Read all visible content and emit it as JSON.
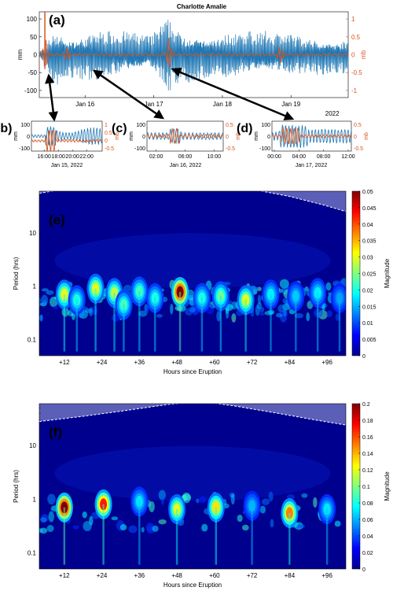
{
  "colors": {
    "tide_gauge": "#1f77b4",
    "pressure": "#d95319",
    "cone_of_influence": "#5b5fb8",
    "background": "#ffffff"
  },
  "chart_data": [
    {
      "id": "a",
      "panel_label": "(a)",
      "type": "line",
      "title": "Charlotte Amalie",
      "ylabel_left": "mm",
      "ylabel_right": "mb",
      "ylim_left": [
        -120,
        120
      ],
      "yticks_left": [
        "100",
        "50",
        "0",
        "-50",
        "-100"
      ],
      "ylim_right": [
        -1.2,
        1.2
      ],
      "yticks_right": [
        "1",
        "0.5",
        "0",
        "-0.5",
        "-1"
      ],
      "xticks": [
        "Jan 16",
        "Jan 17",
        "Jan 18",
        "Jan 19"
      ],
      "year_label": "2022",
      "series": [
        {
          "role": "tide_gauge",
          "axis": "left",
          "amplitude_envelope_mm": [
            [
              0,
              8
            ],
            [
              0.02,
              25
            ],
            [
              0.05,
              80
            ],
            [
              0.09,
              55
            ],
            [
              0.2,
              65
            ],
            [
              0.36,
              45
            ],
            [
              0.42,
              100
            ],
            [
              0.45,
              70
            ],
            [
              0.55,
              60
            ],
            [
              0.75,
              55
            ],
            [
              1.0,
              45
            ]
          ]
        },
        {
          "role": "pressure",
          "axis": "right",
          "spike_mb": 1.2,
          "oscillation_mb": 0.25
        }
      ],
      "callouts": [
        {
          "text": "(b)"
        },
        {
          "text": "(c)"
        },
        {
          "text": "(d)"
        }
      ]
    },
    {
      "id": "b",
      "panel_label": "(b)",
      "type": "line",
      "ylabel_left": "mm",
      "ylabel_right": "mb",
      "yticks_left": [
        "100",
        "0",
        "-100"
      ],
      "yticks_right": [
        "1",
        "0.5",
        "0",
        "-0.5"
      ],
      "xticks": [
        "16:00",
        "18:00",
        "20:00",
        "22:00"
      ],
      "date_label": "Jan 15, 2022"
    },
    {
      "id": "c",
      "panel_label": "(c)",
      "type": "line",
      "ylabel_left": "mm",
      "ylabel_right": "mb",
      "yticks_left": [
        "100",
        "0",
        "-100"
      ],
      "yticks_right": [
        "0.5",
        "0",
        "-0.5"
      ],
      "xticks": [
        "02:00",
        "06:00",
        "10:00"
      ],
      "date_label": "Jan 16, 2022"
    },
    {
      "id": "d",
      "panel_label": "(d)",
      "type": "line",
      "ylabel_left": "mm",
      "ylabel_right": "mb",
      "yticks_left": [
        "100",
        "0",
        "-100"
      ],
      "yticks_right": [
        "0.5",
        "0",
        "-0.5"
      ],
      "xticks": [
        "00:00",
        "04:00",
        "08:00",
        "12:00"
      ],
      "date_label": "Jan 17, 2022"
    },
    {
      "id": "e",
      "panel_label": "(e)",
      "type": "heatmap",
      "xlabel": "Hours since Eruption",
      "ylabel": "Period (hrs)",
      "xlim": [
        4,
        102
      ],
      "xticks": [
        12,
        24,
        36,
        48,
        60,
        72,
        84,
        96
      ],
      "xtick_labels": [
        "+12",
        "+24",
        "+36",
        "+48",
        "+60",
        "+72",
        "+84",
        "+96"
      ],
      "ylog": true,
      "ylim": [
        0.05,
        60
      ],
      "ytick_labels": [
        "10",
        "1",
        "0.1"
      ],
      "colorbar": {
        "label": "Magnitude",
        "min": 0,
        "max": 0.05,
        "ticks": [
          "0.05",
          "0.045",
          "0.04",
          "0.035",
          "0.03",
          "0.025",
          "0.02",
          "0.015",
          "0.01",
          "0.005",
          "0"
        ]
      },
      "hotspots": [
        {
          "hours": 12,
          "period_hrs": 0.7,
          "magnitude": 0.03
        },
        {
          "hours": 16,
          "period_hrs": 0.55,
          "magnitude": 0.02
        },
        {
          "hours": 22,
          "period_hrs": 0.9,
          "magnitude": 0.03
        },
        {
          "hours": 28,
          "period_hrs": 0.75,
          "magnitude": 0.028
        },
        {
          "hours": 31,
          "period_hrs": 0.45,
          "magnitude": 0.022
        },
        {
          "hours": 36,
          "period_hrs": 0.8,
          "magnitude": 0.022
        },
        {
          "hours": 41,
          "period_hrs": 0.6,
          "magnitude": 0.02
        },
        {
          "hours": 49,
          "period_hrs": 0.78,
          "magnitude": 0.05
        },
        {
          "hours": 56,
          "period_hrs": 0.6,
          "magnitude": 0.02
        },
        {
          "hours": 62,
          "period_hrs": 0.65,
          "magnitude": 0.024
        },
        {
          "hours": 70,
          "period_hrs": 0.55,
          "magnitude": 0.03
        },
        {
          "hours": 78,
          "period_hrs": 0.7,
          "magnitude": 0.018
        },
        {
          "hours": 86,
          "period_hrs": 0.65,
          "magnitude": 0.016
        },
        {
          "hours": 93,
          "period_hrs": 0.75,
          "magnitude": 0.018
        },
        {
          "hours": 100,
          "period_hrs": 0.6,
          "magnitude": 0.014
        }
      ]
    },
    {
      "id": "f",
      "panel_label": "(f)",
      "type": "heatmap",
      "xlabel": "Hours since Eruption",
      "ylabel": "Period (hrs)",
      "xlim": [
        4,
        102
      ],
      "xticks": [
        12,
        24,
        36,
        48,
        60,
        72,
        84,
        96
      ],
      "xtick_labels": [
        "+12",
        "+24",
        "+36",
        "+48",
        "+60",
        "+72",
        "+84",
        "+96"
      ],
      "ylog": true,
      "ylim": [
        0.05,
        60
      ],
      "ytick_labels": [
        "10",
        "1",
        "0.1"
      ],
      "colorbar": {
        "label": "Magnitude",
        "min": 0,
        "max": 0.2,
        "ticks": [
          "0.2",
          "0.18",
          "0.16",
          "0.14",
          "0.12",
          "0.1",
          "0.08",
          "0.06",
          "0.04",
          "0.02",
          "0"
        ]
      },
      "hotspots": [
        {
          "hours": 12,
          "period_hrs": 0.7,
          "magnitude": 0.2
        },
        {
          "hours": 24.5,
          "period_hrs": 0.8,
          "magnitude": 0.17
        },
        {
          "hours": 36,
          "period_hrs": 0.9,
          "magnitude": 0.07
        },
        {
          "hours": 48,
          "period_hrs": 0.65,
          "magnitude": 0.12
        },
        {
          "hours": 60.5,
          "period_hrs": 0.7,
          "magnitude": 0.13
        },
        {
          "hours": 72,
          "period_hrs": 0.75,
          "magnitude": 0.06
        },
        {
          "hours": 84,
          "period_hrs": 0.55,
          "magnitude": 0.15
        },
        {
          "hours": 96,
          "period_hrs": 0.65,
          "magnitude": 0.07
        }
      ]
    }
  ]
}
